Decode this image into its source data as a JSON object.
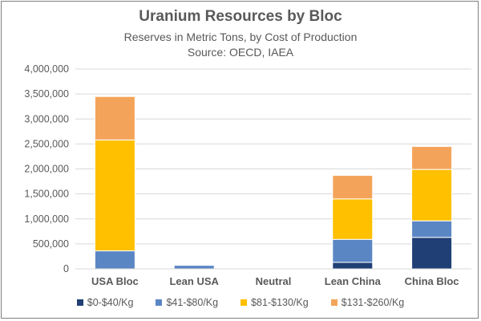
{
  "chart_data": {
    "type": "bar",
    "stacked": true,
    "title": "Uranium Resources by Bloc",
    "subtitle": "Reserves in Metric Tons, by Cost of Production",
    "source": "Source:  OECD, IAEA",
    "categories": [
      "USA Bloc",
      "Lean USA",
      "Neutral",
      "Lean China",
      "China Bloc"
    ],
    "ylim": [
      0,
      4000000
    ],
    "yticks": [
      0,
      500000,
      1000000,
      1500000,
      2000000,
      2500000,
      3000000,
      3500000,
      4000000
    ],
    "ytick_labels": [
      "0",
      "500,000",
      "1,000,000",
      "1,500,000",
      "2,000,000",
      "2,500,000",
      "3,000,000",
      "3,500,000",
      "4,000,000"
    ],
    "grid": true,
    "legend_position": "bottom",
    "series": [
      {
        "name": "$0-$40/Kg",
        "color": "#1f3f75",
        "values": [
          0,
          0,
          0,
          130000,
          630000
        ]
      },
      {
        "name": "$41-$80/Kg",
        "color": "#5b86c4",
        "values": [
          360000,
          70000,
          0,
          460000,
          330000
        ]
      },
      {
        "name": "$81-$130/Kg",
        "color": "#ffc000",
        "values": [
          2220000,
          0,
          0,
          810000,
          1030000
        ]
      },
      {
        "name": "$131-$260/Kg",
        "color": "#f4a45a",
        "values": [
          870000,
          0,
          0,
          470000,
          460000
        ]
      }
    ]
  }
}
